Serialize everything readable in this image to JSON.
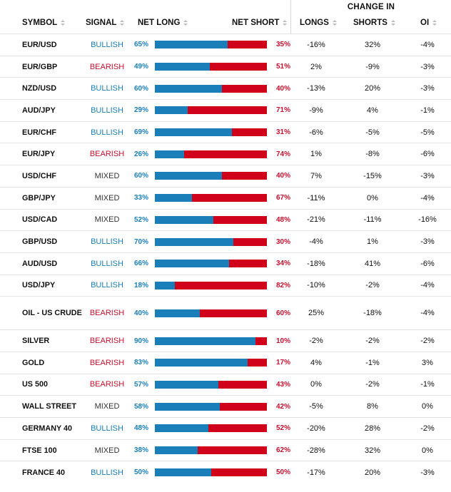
{
  "header": {
    "group_label": "CHANGE IN",
    "columns": {
      "symbol": "SYMBOL",
      "signal": "SIGNAL",
      "net_long": "NET LONG",
      "net_short": "NET SHORT",
      "longs": "LONGS",
      "shorts": "SHORTS",
      "oi": "OI"
    }
  },
  "colors": {
    "long": "#1a7fb8",
    "short": "#d0021b",
    "bullish": "#1a7fb8",
    "bearish": "#c8102e",
    "mixed": "#333333"
  },
  "rows": [
    {
      "symbol": "EUR/USD",
      "signal": "BULLISH",
      "net_long": "65%",
      "long_pct": 65,
      "net_short": "35%",
      "longs": "-16%",
      "shorts": "32%",
      "oi": "-4%"
    },
    {
      "symbol": "EUR/GBP",
      "signal": "BEARISH",
      "net_long": "49%",
      "long_pct": 49,
      "net_short": "51%",
      "longs": "2%",
      "shorts": "-9%",
      "oi": "-3%"
    },
    {
      "symbol": "NZD/USD",
      "signal": "BULLISH",
      "net_long": "60%",
      "long_pct": 60,
      "net_short": "40%",
      "longs": "-13%",
      "shorts": "20%",
      "oi": "-3%"
    },
    {
      "symbol": "AUD/JPY",
      "signal": "BULLISH",
      "net_long": "29%",
      "long_pct": 29,
      "net_short": "71%",
      "longs": "-9%",
      "shorts": "4%",
      "oi": "-1%"
    },
    {
      "symbol": "EUR/CHF",
      "signal": "BULLISH",
      "net_long": "69%",
      "long_pct": 69,
      "net_short": "31%",
      "longs": "-6%",
      "shorts": "-5%",
      "oi": "-5%"
    },
    {
      "symbol": "EUR/JPY",
      "signal": "BEARISH",
      "net_long": "26%",
      "long_pct": 26,
      "net_short": "74%",
      "longs": "1%",
      "shorts": "-8%",
      "oi": "-6%"
    },
    {
      "symbol": "USD/CHF",
      "signal": "MIXED",
      "net_long": "60%",
      "long_pct": 60,
      "net_short": "40%",
      "longs": "7%",
      "shorts": "-15%",
      "oi": "-3%"
    },
    {
      "symbol": "GBP/JPY",
      "signal": "MIXED",
      "net_long": "33%",
      "long_pct": 33,
      "net_short": "67%",
      "longs": "-11%",
      "shorts": "0%",
      "oi": "-4%"
    },
    {
      "symbol": "USD/CAD",
      "signal": "MIXED",
      "net_long": "52%",
      "long_pct": 52,
      "net_short": "48%",
      "longs": "-21%",
      "shorts": "-11%",
      "oi": "-16%"
    },
    {
      "symbol": "GBP/USD",
      "signal": "BULLISH",
      "net_long": "70%",
      "long_pct": 70,
      "net_short": "30%",
      "longs": "-4%",
      "shorts": "1%",
      "oi": "-3%"
    },
    {
      "symbol": "AUD/USD",
      "signal": "BULLISH",
      "net_long": "66%",
      "long_pct": 66,
      "net_short": "34%",
      "longs": "-18%",
      "shorts": "41%",
      "oi": "-6%"
    },
    {
      "symbol": "USD/JPY",
      "signal": "BULLISH",
      "net_long": "18%",
      "long_pct": 18,
      "net_short": "82%",
      "longs": "-10%",
      "shorts": "-2%",
      "oi": "-4%"
    },
    {
      "symbol": "OIL - US CRUDE",
      "signal": "BEARISH",
      "net_long": "40%",
      "long_pct": 40,
      "net_short": "60%",
      "longs": "25%",
      "shorts": "-18%",
      "oi": "-4%"
    },
    {
      "symbol": "SILVER",
      "signal": "BEARISH",
      "net_long": "90%",
      "long_pct": 90,
      "net_short": "10%",
      "longs": "-2%",
      "shorts": "-2%",
      "oi": "-2%"
    },
    {
      "symbol": "GOLD",
      "signal": "BEARISH",
      "net_long": "83%",
      "long_pct": 83,
      "net_short": "17%",
      "longs": "4%",
      "shorts": "-1%",
      "oi": "3%"
    },
    {
      "symbol": "US 500",
      "signal": "BEARISH",
      "net_long": "57%",
      "long_pct": 57,
      "net_short": "43%",
      "longs": "0%",
      "shorts": "-2%",
      "oi": "-1%"
    },
    {
      "symbol": "WALL STREET",
      "signal": "MIXED",
      "net_long": "58%",
      "long_pct": 58,
      "net_short": "42%",
      "longs": "-5%",
      "shorts": "8%",
      "oi": "0%"
    },
    {
      "symbol": "GERMANY 40",
      "signal": "BULLISH",
      "net_long": "48%",
      "long_pct": 48,
      "net_short": "52%",
      "longs": "-20%",
      "shorts": "28%",
      "oi": "-2%"
    },
    {
      "symbol": "FTSE 100",
      "signal": "MIXED",
      "net_long": "38%",
      "long_pct": 38,
      "net_short": "62%",
      "longs": "-28%",
      "shorts": "32%",
      "oi": "0%"
    },
    {
      "symbol": "FRANCE 40",
      "signal": "BULLISH",
      "net_long": "50%",
      "long_pct": 50,
      "net_short": "50%",
      "longs": "-17%",
      "shorts": "20%",
      "oi": "-3%"
    }
  ]
}
